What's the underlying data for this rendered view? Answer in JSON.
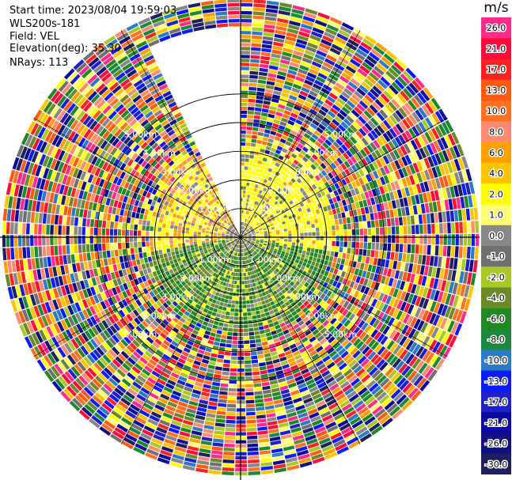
{
  "header": {
    "start_time": "Start time: 2023/08/04 19:59:03",
    "instrument": "WLS200s-181",
    "field": "Field: VEL",
    "elevation": "Elevation(deg): 35.30",
    "nrays": "NRays: 113"
  },
  "chart_data": {
    "type": "heatmap",
    "projection": "polar-ppi",
    "max_range_km": 5.0,
    "range_rings_km": [
      1,
      2,
      3,
      4,
      5
    ],
    "ring_label_text": [
      "1.00km",
      "2.00km",
      "3.00km",
      "4.00km",
      "5.00km"
    ],
    "blank_sector_deg": [
      336,
      360
    ],
    "colorbar": {
      "unit": "m/s",
      "labels": [
        "26.0",
        "21.0",
        "17.0",
        "13.0",
        "10.0",
        "8.0",
        "6.0",
        "4.0",
        "2.0",
        "1.0",
        "0.0",
        "-1.0",
        "-2.0",
        "-4.0",
        "-6.0",
        "-8.0",
        "-10.0",
        "-13.0",
        "-17.0",
        "-21.0",
        "-26.0",
        "-30.0"
      ],
      "colors": [
        "#ff2a8a",
        "#ff0a3a",
        "#ff2020",
        "#ff5a10",
        "#ff7020",
        "#ff8a70",
        "#ffa000",
        "#ffc400",
        "#ffff00",
        "#ffff70",
        "#888888",
        "#707070",
        "#a8c828",
        "#6a8a2a",
        "#228822",
        "#1a8a3a",
        "#2a7ac8",
        "#0a1aff",
        "#2020c8",
        "#0a0aa0",
        "#101080",
        "#202060"
      ]
    }
  }
}
